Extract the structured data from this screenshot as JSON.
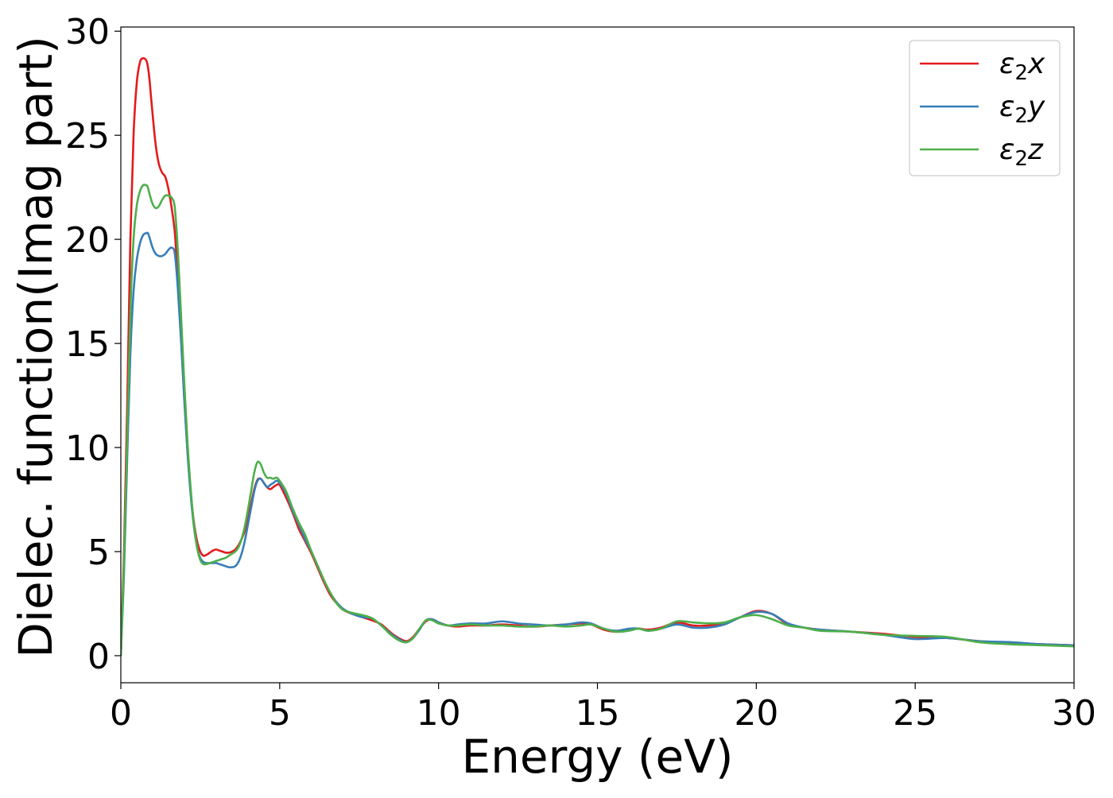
{
  "chart_data": {
    "type": "line",
    "title": "",
    "xlabel": "Energy (eV)",
    "ylabel": "Dielec. function(Imag part)",
    "xlim": [
      0,
      30
    ],
    "ylim": [
      -1.3,
      30.2
    ],
    "xticks": [
      0,
      5,
      10,
      15,
      20,
      25,
      30
    ],
    "yticks": [
      0,
      5,
      10,
      15,
      20,
      25,
      30
    ],
    "grid": false,
    "legend_position": "top-right",
    "series": [
      {
        "name": "ε2x",
        "name_base": "ε",
        "name_sub": "2",
        "name_var": "x",
        "color": "#e41a1c",
        "x": [
          0,
          0.1,
          0.2,
          0.3,
          0.4,
          0.5,
          0.6,
          0.7,
          0.8,
          0.85,
          0.9,
          1.0,
          1.1,
          1.2,
          1.3,
          1.4,
          1.5,
          1.6,
          1.7,
          1.8,
          1.9,
          2.0,
          2.1,
          2.2,
          2.3,
          2.4,
          2.5,
          2.6,
          2.7,
          2.8,
          2.9,
          3.0,
          3.1,
          3.2,
          3.3,
          3.4,
          3.5,
          3.6,
          3.7,
          3.8,
          3.9,
          4.0,
          4.1,
          4.2,
          4.3,
          4.4,
          4.5,
          4.6,
          4.7,
          4.8,
          4.9,
          5.0,
          5.2,
          5.4,
          5.6,
          5.8,
          6.0,
          6.2,
          6.4,
          6.6,
          6.8,
          7.0,
          7.3,
          7.6,
          7.9,
          8.2,
          8.5,
          8.8,
          9.0,
          9.2,
          9.4,
          9.6,
          9.8,
          10.0,
          10.3,
          10.6,
          11.0,
          11.5,
          12.0,
          12.5,
          13.0,
          13.5,
          14.0,
          14.5,
          14.8,
          15.2,
          15.6,
          16.0,
          16.3,
          16.6,
          17.0,
          17.5,
          18.0,
          18.5,
          19.0,
          19.5,
          20.0,
          20.5,
          21.0,
          21.5,
          22.0,
          23.0,
          24.0,
          25.0,
          26.0,
          27.0,
          28.0,
          29.0,
          30.0
        ],
        "values": [
          0,
          5,
          12,
          20,
          25,
          27.5,
          28.5,
          28.7,
          28.6,
          28.3,
          27.7,
          26.0,
          24.5,
          23.6,
          23.2,
          23.0,
          22.4,
          21.5,
          20.3,
          18.0,
          15.2,
          12.3,
          9.8,
          7.8,
          6.4,
          5.5,
          5.0,
          4.8,
          4.85,
          4.95,
          5.05,
          5.1,
          5.05,
          5.0,
          4.95,
          4.95,
          5.0,
          5.1,
          5.3,
          5.6,
          6.0,
          6.6,
          7.3,
          8.0,
          8.45,
          8.5,
          8.3,
          8.1,
          8.0,
          8.1,
          8.2,
          8.2,
          7.6,
          6.9,
          6.1,
          5.5,
          4.9,
          4.2,
          3.5,
          2.9,
          2.5,
          2.2,
          2.0,
          1.85,
          1.7,
          1.5,
          1.1,
          0.8,
          0.7,
          0.9,
          1.3,
          1.65,
          1.75,
          1.6,
          1.45,
          1.4,
          1.45,
          1.45,
          1.5,
          1.45,
          1.4,
          1.45,
          1.5,
          1.55,
          1.5,
          1.25,
          1.15,
          1.25,
          1.3,
          1.25,
          1.35,
          1.6,
          1.45,
          1.45,
          1.55,
          1.85,
          2.15,
          2.0,
          1.5,
          1.35,
          1.25,
          1.15,
          1.05,
          0.9,
          0.85,
          0.7,
          0.6,
          0.55,
          0.5
        ]
      },
      {
        "name": "ε2y",
        "name_base": "ε",
        "name_sub": "2",
        "name_var": "y",
        "color": "#377eb8",
        "x": [
          0,
          0.1,
          0.2,
          0.3,
          0.4,
          0.5,
          0.6,
          0.7,
          0.8,
          0.85,
          0.9,
          1.0,
          1.1,
          1.2,
          1.3,
          1.4,
          1.5,
          1.6,
          1.7,
          1.8,
          1.9,
          2.0,
          2.1,
          2.2,
          2.3,
          2.4,
          2.5,
          2.6,
          2.7,
          2.8,
          2.9,
          3.0,
          3.1,
          3.2,
          3.3,
          3.4,
          3.5,
          3.6,
          3.7,
          3.8,
          3.9,
          4.0,
          4.1,
          4.2,
          4.3,
          4.4,
          4.5,
          4.6,
          4.7,
          4.8,
          4.9,
          5.0,
          5.2,
          5.4,
          5.6,
          5.8,
          6.0,
          6.2,
          6.4,
          6.6,
          6.8,
          7.0,
          7.3,
          7.6,
          7.9,
          8.2,
          8.5,
          8.8,
          9.0,
          9.2,
          9.4,
          9.6,
          9.8,
          10.0,
          10.3,
          10.6,
          11.0,
          11.5,
          12.0,
          12.5,
          13.0,
          13.5,
          14.0,
          14.5,
          14.8,
          15.2,
          15.6,
          16.0,
          16.3,
          16.6,
          17.0,
          17.5,
          18.0,
          18.5,
          19.0,
          19.5,
          20.0,
          20.5,
          21.0,
          21.5,
          22.0,
          23.0,
          24.0,
          25.0,
          26.0,
          27.0,
          28.0,
          29.0,
          30.0
        ],
        "values": [
          0,
          4,
          9.5,
          14.5,
          17.5,
          19.0,
          19.8,
          20.2,
          20.3,
          20.3,
          20.1,
          19.6,
          19.3,
          19.2,
          19.2,
          19.3,
          19.5,
          19.6,
          19.3,
          17.5,
          15.0,
          12.2,
          9.7,
          7.7,
          6.2,
          5.2,
          4.7,
          4.5,
          4.45,
          4.45,
          4.45,
          4.45,
          4.4,
          4.35,
          4.3,
          4.25,
          4.25,
          4.3,
          4.5,
          4.9,
          5.5,
          6.3,
          7.1,
          7.9,
          8.4,
          8.5,
          8.3,
          8.1,
          8.2,
          8.3,
          8.4,
          8.3,
          7.8,
          7.0,
          6.3,
          5.6,
          5.0,
          4.3,
          3.6,
          3.0,
          2.55,
          2.25,
          2.0,
          1.85,
          1.8,
          1.45,
          1.05,
          0.75,
          0.65,
          0.85,
          1.25,
          1.7,
          1.75,
          1.6,
          1.45,
          1.5,
          1.55,
          1.55,
          1.65,
          1.55,
          1.5,
          1.45,
          1.5,
          1.6,
          1.55,
          1.3,
          1.2,
          1.3,
          1.3,
          1.2,
          1.3,
          1.5,
          1.35,
          1.35,
          1.5,
          1.85,
          2.1,
          2.0,
          1.55,
          1.35,
          1.25,
          1.15,
          1.0,
          0.8,
          0.85,
          0.7,
          0.65,
          0.55,
          0.5
        ]
      },
      {
        "name": "ε2z",
        "name_base": "ε",
        "name_sub": "2",
        "name_var": "z",
        "color": "#4daf4a",
        "x": [
          0,
          0.1,
          0.2,
          0.3,
          0.4,
          0.5,
          0.6,
          0.7,
          0.8,
          0.85,
          0.9,
          1.0,
          1.1,
          1.2,
          1.3,
          1.4,
          1.5,
          1.6,
          1.7,
          1.8,
          1.9,
          2.0,
          2.1,
          2.2,
          2.3,
          2.4,
          2.5,
          2.6,
          2.7,
          2.8,
          2.9,
          3.0,
          3.1,
          3.2,
          3.3,
          3.4,
          3.5,
          3.6,
          3.7,
          3.8,
          3.9,
          4.0,
          4.1,
          4.2,
          4.3,
          4.4,
          4.5,
          4.6,
          4.7,
          4.8,
          4.9,
          5.0,
          5.2,
          5.4,
          5.6,
          5.8,
          6.0,
          6.2,
          6.4,
          6.6,
          6.8,
          7.0,
          7.3,
          7.6,
          7.9,
          8.2,
          8.5,
          8.8,
          9.0,
          9.2,
          9.4,
          9.6,
          9.8,
          10.0,
          10.3,
          10.6,
          11.0,
          11.5,
          12.0,
          12.5,
          13.0,
          13.5,
          14.0,
          14.5,
          14.8,
          15.2,
          15.6,
          16.0,
          16.3,
          16.6,
          17.0,
          17.5,
          18.0,
          18.5,
          19.0,
          19.5,
          20.0,
          20.5,
          21.0,
          21.5,
          22.0,
          23.0,
          24.0,
          25.0,
          26.0,
          27.0,
          28.0,
          29.0,
          30.0
        ],
        "values": [
          0,
          4.5,
          10.5,
          16.5,
          20.0,
          21.6,
          22.3,
          22.6,
          22.6,
          22.5,
          22.2,
          21.7,
          21.5,
          21.6,
          21.9,
          22.1,
          22.1,
          22.0,
          21.5,
          19.3,
          16.2,
          13.0,
          10.2,
          8.0,
          6.3,
          5.2,
          4.6,
          4.4,
          4.4,
          4.45,
          4.5,
          4.55,
          4.6,
          4.65,
          4.7,
          4.8,
          4.9,
          5.0,
          5.2,
          5.6,
          6.2,
          7.0,
          7.9,
          8.8,
          9.3,
          9.2,
          8.8,
          8.55,
          8.55,
          8.5,
          8.55,
          8.4,
          7.9,
          7.1,
          6.4,
          5.8,
          5.0,
          4.3,
          3.6,
          3.0,
          2.5,
          2.2,
          2.05,
          1.95,
          1.8,
          1.45,
          1.0,
          0.7,
          0.65,
          0.85,
          1.3,
          1.7,
          1.7,
          1.55,
          1.45,
          1.45,
          1.5,
          1.45,
          1.45,
          1.4,
          1.4,
          1.45,
          1.4,
          1.45,
          1.5,
          1.3,
          1.15,
          1.2,
          1.3,
          1.2,
          1.3,
          1.65,
          1.6,
          1.55,
          1.6,
          1.85,
          1.95,
          1.75,
          1.45,
          1.35,
          1.2,
          1.15,
          1.0,
          0.95,
          0.9,
          0.65,
          0.55,
          0.5,
          0.45
        ]
      }
    ]
  }
}
